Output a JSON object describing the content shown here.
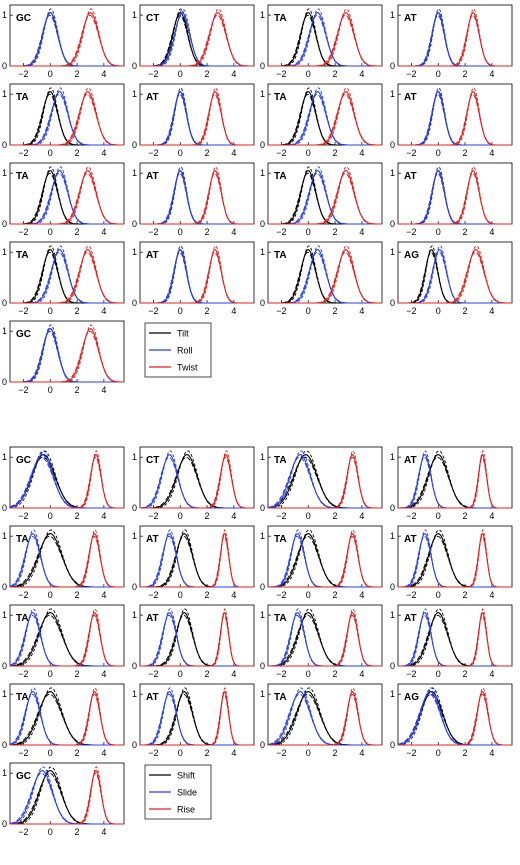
{
  "chart_data": {
    "type": "line",
    "groups": [
      {
        "legend": [
          "Tilt",
          "Roll",
          "Twist"
        ],
        "x_ticks": [
          "−2",
          "0",
          "2",
          "4"
        ],
        "y_ticks": [
          "0",
          "1"
        ],
        "xlim": [
          -3,
          5.5
        ],
        "ylim": [
          0,
          1.2
        ],
        "panels": [
          {
            "label": "GC",
            "p": [
              [
                0,
                0.55
              ],
              [
                0,
                0.55
              ],
              [
                3,
                0.6
              ]
            ]
          },
          {
            "label": "CT",
            "p": [
              [
                0,
                0.55
              ],
              [
                0.15,
                0.55
              ],
              [
                2.8,
                0.6
              ]
            ]
          },
          {
            "label": "TA",
            "p": [
              [
                0,
                0.55
              ],
              [
                0.7,
                0.6
              ],
              [
                2.8,
                0.6
              ]
            ]
          },
          {
            "label": "AT",
            "p": [
              [
                0,
                0.45
              ],
              [
                0,
                0.45
              ],
              [
                2.6,
                0.45
              ]
            ]
          },
          {
            "label": "TA",
            "p": [
              [
                0,
                0.55
              ],
              [
                0.7,
                0.6
              ],
              [
                2.8,
                0.6
              ]
            ]
          },
          {
            "label": "AT",
            "p": [
              [
                0,
                0.45
              ],
              [
                0,
                0.45
              ],
              [
                2.6,
                0.45
              ]
            ]
          },
          {
            "label": "TA",
            "p": [
              [
                0,
                0.55
              ],
              [
                0.7,
                0.6
              ],
              [
                2.8,
                0.6
              ]
            ]
          },
          {
            "label": "AT",
            "p": [
              [
                0,
                0.45
              ],
              [
                0,
                0.45
              ],
              [
                2.6,
                0.45
              ]
            ]
          },
          {
            "label": "TA",
            "p": [
              [
                0,
                0.55
              ],
              [
                0.7,
                0.6
              ],
              [
                2.8,
                0.6
              ]
            ]
          },
          {
            "label": "AT",
            "p": [
              [
                0,
                0.45
              ],
              [
                0,
                0.45
              ],
              [
                2.6,
                0.45
              ]
            ]
          },
          {
            "label": "TA",
            "p": [
              [
                0,
                0.55
              ],
              [
                0.7,
                0.6
              ],
              [
                2.8,
                0.6
              ]
            ]
          },
          {
            "label": "AT",
            "p": [
              [
                0,
                0.45
              ],
              [
                0,
                0.45
              ],
              [
                2.6,
                0.45
              ]
            ]
          },
          {
            "label": "TA",
            "p": [
              [
                0,
                0.55
              ],
              [
                0.7,
                0.6
              ],
              [
                2.8,
                0.6
              ]
            ]
          },
          {
            "label": "AT",
            "p": [
              [
                0,
                0.45
              ],
              [
                0,
                0.45
              ],
              [
                2.6,
                0.45
              ]
            ]
          },
          {
            "label": "TA",
            "p": [
              [
                0,
                0.55
              ],
              [
                0.7,
                0.6
              ],
              [
                2.8,
                0.6
              ]
            ]
          },
          {
            "label": "AG",
            "p": [
              [
                -0.5,
                0.45
              ],
              [
                0.1,
                0.5
              ],
              [
                2.8,
                0.6
              ]
            ]
          },
          {
            "label": "GC",
            "p": [
              [
                0,
                0.55
              ],
              [
                0,
                0.55
              ],
              [
                3,
                0.6
              ]
            ]
          }
        ]
      },
      {
        "legend": [
          "Shift",
          "Slide",
          "Rise"
        ],
        "x_ticks": [
          "−2",
          "0",
          "2",
          "4"
        ],
        "y_ticks": [
          "0",
          "1"
        ],
        "xlim": [
          -3,
          5.5
        ],
        "ylim": [
          0,
          1.2
        ],
        "panels": [
          {
            "label": "GC",
            "p": [
              [
                -0.5,
                0.85
              ],
              [
                -0.6,
                0.8
              ],
              [
                3.4,
                0.38
              ]
            ]
          },
          {
            "label": "CT",
            "p": [
              [
                0.5,
                0.75
              ],
              [
                -0.8,
                0.6
              ],
              [
                3.4,
                0.4
              ]
            ]
          },
          {
            "label": "TA",
            "p": [
              [
                -0.2,
                0.85
              ],
              [
                -0.6,
                0.75
              ],
              [
                3.3,
                0.4
              ]
            ]
          },
          {
            "label": "AT",
            "p": [
              [
                0,
                0.75
              ],
              [
                -1,
                0.45
              ],
              [
                3.3,
                0.3
              ]
            ]
          },
          {
            "label": "TA",
            "p": [
              [
                0,
                0.85
              ],
              [
                -1.3,
                0.55
              ],
              [
                3.3,
                0.4
              ]
            ]
          },
          {
            "label": "AT",
            "p": [
              [
                0.3,
                0.6
              ],
              [
                -0.8,
                0.5
              ],
              [
                3.3,
                0.3
              ]
            ]
          },
          {
            "label": "TA",
            "p": [
              [
                0,
                0.75
              ],
              [
                -0.8,
                0.5
              ],
              [
                3.3,
                0.4
              ]
            ]
          },
          {
            "label": "AT",
            "p": [
              [
                0,
                0.7
              ],
              [
                -1,
                0.45
              ],
              [
                3.3,
                0.3
              ]
            ]
          },
          {
            "label": "TA",
            "p": [
              [
                0,
                0.85
              ],
              [
                -1.3,
                0.55
              ],
              [
                3.3,
                0.4
              ]
            ]
          },
          {
            "label": "AT",
            "p": [
              [
                0.3,
                0.6
              ],
              [
                -0.8,
                0.5
              ],
              [
                3.3,
                0.3
              ]
            ]
          },
          {
            "label": "TA",
            "p": [
              [
                0,
                0.75
              ],
              [
                -0.8,
                0.5
              ],
              [
                3.3,
                0.4
              ]
            ]
          },
          {
            "label": "AT",
            "p": [
              [
                0,
                0.7
              ],
              [
                -1,
                0.45
              ],
              [
                3.3,
                0.3
              ]
            ]
          },
          {
            "label": "TA",
            "p": [
              [
                0,
                0.85
              ],
              [
                -1.3,
                0.55
              ],
              [
                3.3,
                0.4
              ]
            ]
          },
          {
            "label": "AT",
            "p": [
              [
                0.3,
                0.6
              ],
              [
                -0.8,
                0.5
              ],
              [
                3.3,
                0.3
              ]
            ]
          },
          {
            "label": "TA",
            "p": [
              [
                0,
                0.85
              ],
              [
                -0.6,
                0.75
              ],
              [
                3.3,
                0.4
              ]
            ]
          },
          {
            "label": "AG",
            "p": [
              [
                -0.5,
                0.8
              ],
              [
                -0.6,
                0.75
              ],
              [
                3.3,
                0.4
              ]
            ]
          },
          {
            "label": "GC",
            "p": [
              [
                0,
                0.8
              ],
              [
                -0.6,
                0.75
              ],
              [
                3.4,
                0.38
              ]
            ]
          }
        ]
      }
    ],
    "colors": {
      "first": "#000000",
      "second": "#2a3fe6",
      "third": "#e02020"
    }
  }
}
